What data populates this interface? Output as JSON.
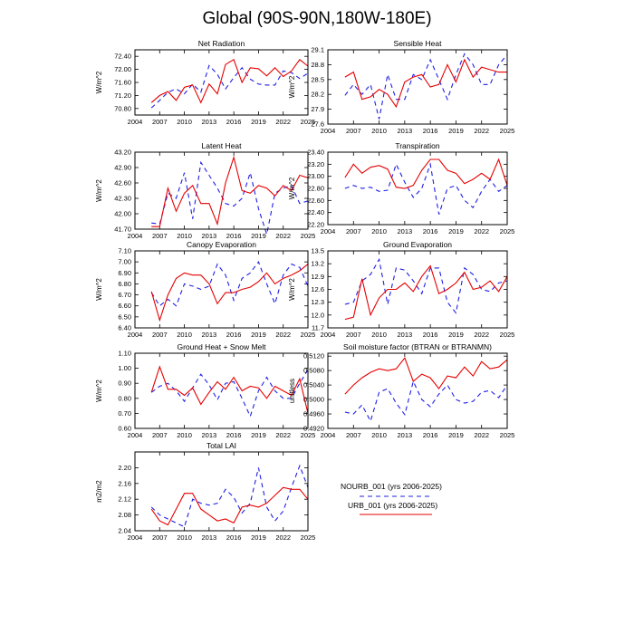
{
  "figure": {
    "title": "Global (90S-90N,180W-180E)"
  },
  "legend": {
    "entries": [
      {
        "label": "NOURB_001 (yrs 2006-2025)",
        "color": "#1f1fe6",
        "dash": true
      },
      {
        "label": "URB_001 (yrs 2006-2025)",
        "color": "#e60000",
        "dash": false
      }
    ]
  },
  "chart_data": [
    {
      "type": "line",
      "title": "Net Radiation",
      "ylabel": "W/m^2",
      "xlim": [
        2004,
        2025
      ],
      "xticks": [
        2004,
        2007,
        2010,
        2013,
        2016,
        2019,
        2022,
        2025
      ],
      "ylim": [
        70.6,
        72.6
      ],
      "yticks": [
        70.8,
        71.2,
        71.6,
        72.0,
        72.4
      ],
      "ytick_labels": [
        "70.80",
        "71.20",
        "71.60",
        "72.00",
        "72.40"
      ],
      "x": [
        2006,
        2007,
        2008,
        2009,
        2010,
        2011,
        2012,
        2013,
        2014,
        2015,
        2016,
        2017,
        2018,
        2019,
        2020,
        2021,
        2022,
        2023,
        2024,
        2025
      ],
      "series": [
        {
          "name": "NOURB_001",
          "values": [
            70.82,
            71.05,
            71.3,
            71.4,
            71.25,
            71.55,
            71.3,
            72.12,
            71.85,
            71.4,
            71.75,
            72.05,
            71.7,
            71.55,
            71.52,
            71.52,
            71.95,
            71.9,
            71.72,
            71.88
          ]
        },
        {
          "name": "URB_001",
          "values": [
            70.98,
            71.2,
            71.32,
            71.05,
            71.45,
            71.52,
            70.98,
            71.55,
            71.25,
            72.15,
            72.3,
            71.6,
            72.05,
            72.02,
            71.8,
            72.05,
            71.78,
            71.95,
            72.3,
            72.1
          ]
        }
      ]
    },
    {
      "type": "line",
      "title": "Sensible Heat",
      "ylabel": "W/m^2",
      "xlim": [
        2004,
        2025
      ],
      "xticks": [
        2004,
        2007,
        2010,
        2013,
        2016,
        2019,
        2022,
        2025
      ],
      "ylim": [
        27.6,
        29.1
      ],
      "yticks": [
        27.6,
        27.9,
        28.2,
        28.5,
        28.8,
        29.1
      ],
      "ytick_labels": [
        "27.6",
        "27.9",
        "28.2",
        "28.5",
        "28.8",
        "29.1"
      ],
      "x": [
        2006,
        2007,
        2008,
        2009,
        2010,
        2011,
        2012,
        2013,
        2014,
        2015,
        2016,
        2017,
        2018,
        2019,
        2020,
        2021,
        2022,
        2023,
        2024,
        2025
      ],
      "series": [
        {
          "name": "NOURB_001",
          "values": [
            28.18,
            28.4,
            28.2,
            28.4,
            27.7,
            28.6,
            28.1,
            28.1,
            28.6,
            28.5,
            28.9,
            28.5,
            28.1,
            28.6,
            29.02,
            28.8,
            28.4,
            28.4,
            28.8,
            29.0
          ]
        },
        {
          "name": "URB_001",
          "values": [
            28.55,
            28.65,
            28.1,
            28.15,
            28.3,
            28.2,
            27.95,
            28.45,
            28.55,
            28.6,
            28.35,
            28.4,
            28.8,
            28.45,
            28.9,
            28.55,
            28.75,
            28.7,
            28.65,
            28.65
          ]
        }
      ]
    },
    {
      "type": "line",
      "title": "Latent Heat",
      "ylabel": "W/m^2",
      "xlim": [
        2004,
        2025
      ],
      "xticks": [
        2004,
        2007,
        2010,
        2013,
        2016,
        2019,
        2022,
        2025
      ],
      "ylim": [
        41.7,
        43.2
      ],
      "yticks": [
        41.7,
        42.0,
        42.3,
        42.6,
        42.9,
        43.2
      ],
      "ytick_labels": [
        "41.70",
        "42.00",
        "42.30",
        "42.60",
        "42.90",
        "43.20"
      ],
      "x": [
        2006,
        2007,
        2008,
        2009,
        2010,
        2011,
        2012,
        2013,
        2014,
        2015,
        2016,
        2017,
        2018,
        2019,
        2020,
        2021,
        2022,
        2023,
        2024,
        2025
      ],
      "series": [
        {
          "name": "NOURB_001",
          "values": [
            41.82,
            41.8,
            42.4,
            42.3,
            42.8,
            41.9,
            43.0,
            42.75,
            42.5,
            42.2,
            42.15,
            42.3,
            42.8,
            42.1,
            41.6,
            42.4,
            42.5,
            42.55,
            42.2,
            42.25
          ]
        },
        {
          "name": "URB_001",
          "values": [
            41.75,
            41.75,
            42.5,
            42.05,
            42.4,
            42.55,
            42.2,
            42.2,
            41.8,
            42.6,
            43.1,
            42.45,
            42.4,
            42.55,
            42.5,
            42.35,
            42.55,
            42.45,
            42.75,
            42.7
          ]
        }
      ]
    },
    {
      "type": "line",
      "title": "Transpiration",
      "ylabel": "W/m^2",
      "xlim": [
        2004,
        2025
      ],
      "xticks": [
        2004,
        2007,
        2010,
        2013,
        2016,
        2019,
        2022,
        2025
      ],
      "ylim": [
        22.2,
        23.4
      ],
      "yticks": [
        22.2,
        22.4,
        22.6,
        22.8,
        23.0,
        23.2,
        23.4
      ],
      "ytick_labels": [
        "22.20",
        "22.40",
        "22.60",
        "22.80",
        "23.00",
        "23.20",
        "23.40"
      ],
      "x": [
        2006,
        2007,
        2008,
        2009,
        2010,
        2011,
        2012,
        2013,
        2014,
        2015,
        2016,
        2017,
        2018,
        2019,
        2020,
        2021,
        2022,
        2023,
        2024,
        2025
      ],
      "series": [
        {
          "name": "NOURB_001",
          "values": [
            22.8,
            22.85,
            22.8,
            22.82,
            22.75,
            22.77,
            23.2,
            22.9,
            22.65,
            22.8,
            23.2,
            22.37,
            22.8,
            22.85,
            22.6,
            22.48,
            22.75,
            22.95,
            22.75,
            22.85
          ]
        },
        {
          "name": "URB_001",
          "values": [
            22.98,
            23.2,
            23.05,
            23.15,
            23.18,
            23.12,
            22.82,
            22.8,
            22.85,
            23.1,
            23.28,
            23.28,
            23.1,
            23.05,
            22.88,
            22.95,
            23.05,
            22.95,
            23.28,
            22.85
          ]
        }
      ]
    },
    {
      "type": "line",
      "title": "Canopy Evaporation",
      "ylabel": "W/m^2",
      "xlim": [
        2004,
        2025
      ],
      "xticks": [
        2004,
        2007,
        2010,
        2013,
        2016,
        2019,
        2022,
        2025
      ],
      "ylim": [
        6.4,
        7.1
      ],
      "yticks": [
        6.4,
        6.5,
        6.6,
        6.7,
        6.8,
        6.9,
        7.0,
        7.1
      ],
      "ytick_labels": [
        "6.40",
        "6.50",
        "6.60",
        "6.70",
        "6.80",
        "6.90",
        "7.00",
        "7.10"
      ],
      "x": [
        2006,
        2007,
        2008,
        2009,
        2010,
        2011,
        2012,
        2013,
        2014,
        2015,
        2016,
        2017,
        2018,
        2019,
        2020,
        2021,
        2022,
        2023,
        2024,
        2025
      ],
      "series": [
        {
          "name": "NOURB_001",
          "values": [
            6.72,
            6.6,
            6.66,
            6.6,
            6.8,
            6.78,
            6.75,
            6.78,
            6.98,
            6.88,
            6.65,
            6.85,
            6.9,
            7.0,
            6.8,
            6.62,
            6.88,
            6.98,
            6.95,
            6.78
          ]
        },
        {
          "name": "URB_001",
          "values": [
            6.73,
            6.47,
            6.7,
            6.85,
            6.9,
            6.88,
            6.88,
            6.8,
            6.62,
            6.72,
            6.72,
            6.75,
            6.77,
            6.82,
            6.9,
            6.8,
            6.85,
            6.88,
            6.92,
            6.98
          ]
        }
      ]
    },
    {
      "type": "line",
      "title": "Ground Evaporation",
      "ylabel": "W/m^2",
      "xlim": [
        2004,
        2025
      ],
      "xticks": [
        2004,
        2007,
        2010,
        2013,
        2016,
        2019,
        2022,
        2025
      ],
      "ylim": [
        11.7,
        13.5
      ],
      "yticks": [
        11.7,
        12.0,
        12.3,
        12.6,
        12.9,
        13.2,
        13.5
      ],
      "ytick_labels": [
        "11.7",
        "12.0",
        "12.3",
        "12.6",
        "12.9",
        "13.2",
        "13.5"
      ],
      "x": [
        2006,
        2007,
        2008,
        2009,
        2010,
        2011,
        2012,
        2013,
        2014,
        2015,
        2016,
        2017,
        2018,
        2019,
        2020,
        2021,
        2022,
        2023,
        2024,
        2025
      ],
      "series": [
        {
          "name": "NOURB_001",
          "values": [
            12.25,
            12.3,
            12.8,
            12.95,
            13.3,
            12.25,
            13.1,
            13.05,
            12.8,
            12.5,
            13.1,
            13.1,
            12.3,
            12.05,
            13.1,
            12.95,
            12.6,
            12.55,
            12.75,
            12.8
          ]
        },
        {
          "name": "URB_001",
          "values": [
            11.9,
            11.95,
            12.85,
            12.0,
            12.4,
            12.6,
            12.6,
            12.75,
            12.55,
            12.9,
            13.15,
            12.5,
            12.6,
            12.75,
            13.0,
            12.6,
            12.65,
            12.8,
            12.55,
            12.9
          ]
        }
      ]
    },
    {
      "type": "line",
      "title": "Ground Heat + Snow Melt",
      "ylabel": "W/m^2",
      "xlim": [
        2004,
        2025
      ],
      "xticks": [
        2004,
        2007,
        2010,
        2013,
        2016,
        2019,
        2022,
        2025
      ],
      "ylim": [
        0.6,
        1.1
      ],
      "yticks": [
        0.6,
        0.7,
        0.8,
        0.9,
        1.0,
        1.1
      ],
      "ytick_labels": [
        "0.60",
        "0.70",
        "0.80",
        "0.90",
        "1.00",
        "1.10"
      ],
      "x": [
        2006,
        2007,
        2008,
        2009,
        2010,
        2011,
        2012,
        2013,
        2014,
        2015,
        2016,
        2017,
        2018,
        2019,
        2020,
        2021,
        2022,
        2023,
        2024,
        2025
      ],
      "series": [
        {
          "name": "NOURB_001",
          "values": [
            0.84,
            0.88,
            0.9,
            0.85,
            0.78,
            0.87,
            0.96,
            0.89,
            0.79,
            0.9,
            0.91,
            0.8,
            0.68,
            0.85,
            0.94,
            0.85,
            0.8,
            0.8,
            0.9,
            0.99
          ]
        },
        {
          "name": "URB_001",
          "values": [
            0.84,
            1.01,
            0.86,
            0.86,
            0.82,
            0.87,
            0.76,
            0.84,
            0.91,
            0.86,
            0.94,
            0.85,
            0.88,
            0.87,
            0.8,
            0.88,
            0.85,
            0.82,
            0.93,
            0.7
          ]
        }
      ]
    },
    {
      "type": "line",
      "title": "Soil moisture factor (BTRAN or BTRANMN)",
      "ylabel": "unitless",
      "xlim": [
        2004,
        2025
      ],
      "xticks": [
        2004,
        2007,
        2010,
        2013,
        2016,
        2019,
        2022,
        2025
      ],
      "ylim": [
        0.492,
        0.5128
      ],
      "yticks": [
        0.492,
        0.496,
        0.5,
        0.504,
        0.508,
        0.512
      ],
      "ytick_labels": [
        "0.4920",
        "0.4960",
        "0.5000",
        "0.5040",
        "0.5080",
        "0.5120"
      ],
      "x": [
        2006,
        2007,
        2008,
        2009,
        2010,
        2011,
        2012,
        2013,
        2014,
        2015,
        2016,
        2017,
        2018,
        2019,
        2020,
        2021,
        2022,
        2023,
        2024,
        2025
      ],
      "series": [
        {
          "name": "NOURB_001",
          "values": [
            0.4965,
            0.496,
            0.4985,
            0.494,
            0.502,
            0.503,
            0.499,
            0.4958,
            0.505,
            0.5,
            0.498,
            0.5015,
            0.504,
            0.5,
            0.499,
            0.4995,
            0.502,
            0.5025,
            0.5005,
            0.504
          ]
        },
        {
          "name": "URB_001",
          "values": [
            0.5015,
            0.504,
            0.506,
            0.5075,
            0.5085,
            0.508,
            0.5085,
            0.5115,
            0.505,
            0.507,
            0.506,
            0.503,
            0.5065,
            0.506,
            0.509,
            0.5065,
            0.5105,
            0.5085,
            0.509,
            0.511
          ]
        }
      ]
    },
    {
      "type": "line",
      "title": "Total LAI",
      "ylabel": "m2/m2",
      "xlim": [
        2004,
        2025
      ],
      "xticks": [
        2004,
        2007,
        2010,
        2013,
        2016,
        2019,
        2022,
        2025
      ],
      "ylim": [
        2.04,
        2.24
      ],
      "yticks": [
        2.04,
        2.08,
        2.12,
        2.16,
        2.2
      ],
      "ytick_labels": [
        "2.04",
        "2.08",
        "2.12",
        "2.16",
        "2.20"
      ],
      "x": [
        2006,
        2007,
        2008,
        2009,
        2010,
        2011,
        2012,
        2013,
        2014,
        2015,
        2016,
        2017,
        2018,
        2019,
        2020,
        2021,
        2022,
        2023,
        2024,
        2025
      ],
      "series": [
        {
          "name": "NOURB_001",
          "values": [
            2.1,
            2.08,
            2.07,
            2.06,
            2.05,
            2.12,
            2.11,
            2.105,
            2.11,
            2.145,
            2.125,
            2.085,
            2.11,
            2.2,
            2.1,
            2.065,
            2.09,
            2.15,
            2.205,
            2.15
          ]
        },
        {
          "name": "URB_001",
          "values": [
            2.095,
            2.065,
            2.055,
            2.095,
            2.135,
            2.135,
            2.095,
            2.08,
            2.065,
            2.07,
            2.06,
            2.1,
            2.105,
            2.1,
            2.11,
            2.13,
            2.15,
            2.145,
            2.145,
            2.12
          ]
        }
      ]
    }
  ]
}
